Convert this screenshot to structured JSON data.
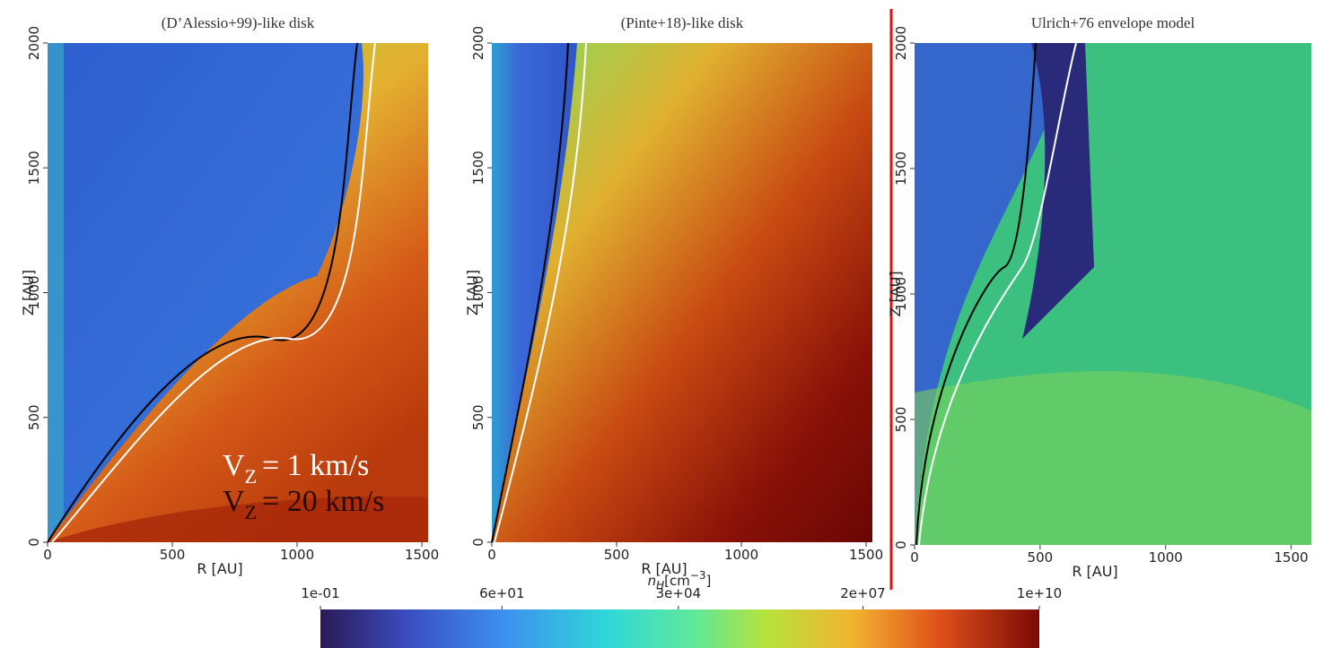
{
  "chart_data": [
    {
      "type": "image",
      "title": "(D’Alessio+99)-like disk",
      "xlabel": "R [AU]",
      "ylabel": "Z [AU]",
      "xlim": [
        0,
        1525
      ],
      "ylim": [
        0,
        2000
      ],
      "xticks": [
        0,
        500,
        1000,
        1500
      ],
      "yticks": [
        0,
        500,
        1000,
        1500,
        2000
      ],
      "legend": [
        {
          "color": "#ffffff",
          "parts": [
            "V",
            "Z",
            "= 1 km/s"
          ]
        },
        {
          "color": "#2a0a04",
          "parts": [
            "V",
            "Z",
            "= 20 km/s"
          ]
        }
      ]
    },
    {
      "type": "image",
      "title": "(Pinte+18)-like disk",
      "xlabel": "R [AU]",
      "ylabel": "Z [AU]",
      "xlim": [
        0,
        1525
      ],
      "ylim": [
        0,
        2000
      ],
      "xticks": [
        0,
        500,
        1000,
        1500
      ],
      "yticks": [
        0,
        500,
        1000,
        1500,
        2000
      ]
    },
    {
      "type": "image",
      "title": "Ulrich+76 envelope model",
      "xlabel": "R [AU]",
      "ylabel": "Z [AU]",
      "xlim": [
        0,
        1580
      ],
      "ylim": [
        0,
        2000
      ],
      "xticks": [
        0,
        500,
        1000,
        1500
      ],
      "yticks": [
        0,
        500,
        1000,
        1500,
        2000
      ]
    }
  ],
  "colorbar": {
    "label": {
      "symbol": "n",
      "subscript": "H",
      "unit": "[cm",
      "superscript": "−3",
      "close": "]"
    },
    "scale": "log",
    "lim": [
      0.1,
      10000000000
    ],
    "ticks": [
      {
        "value": 0.1,
        "label": "1e-01"
      },
      {
        "value": 60,
        "label": "6e+01"
      },
      {
        "value": 30000,
        "label": "3e+04"
      },
      {
        "value": 20000000,
        "label": "2e+07"
      },
      {
        "value": 10000000000,
        "label": "1e+10"
      }
    ]
  }
}
